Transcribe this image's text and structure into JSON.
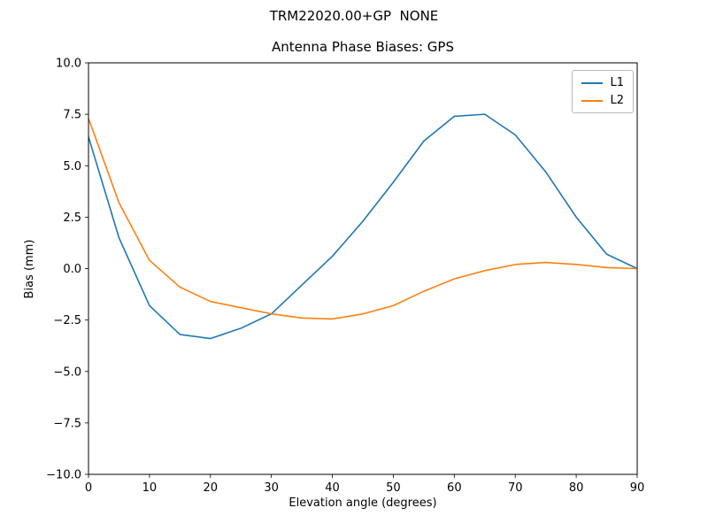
{
  "figure": {
    "suptitle": "TRM22020.00+GP  NONE"
  },
  "chart_data": {
    "type": "line",
    "title": "Antenna Phase Biases: GPS",
    "xlabel": "Elevation angle (degrees)",
    "ylabel": "Bias (mm)",
    "xlim": [
      0,
      90
    ],
    "ylim": [
      -10,
      10
    ],
    "grid": false,
    "legend_position": "upper right",
    "xticks": [
      0,
      10,
      20,
      30,
      40,
      50,
      60,
      70,
      80,
      90
    ],
    "xtick_labels": [
      "0",
      "10",
      "20",
      "30",
      "40",
      "50",
      "60",
      "70",
      "80",
      "90"
    ],
    "yticks": [
      -10,
      -7.5,
      -5,
      -2.5,
      0,
      2.5,
      5,
      7.5,
      10
    ],
    "ytick_labels": [
      "−10.0",
      "−7.5",
      "−5.0",
      "−2.5",
      "0.0",
      "2.5",
      "5.0",
      "7.5",
      "10.0"
    ],
    "x": [
      0,
      5,
      10,
      15,
      20,
      25,
      30,
      35,
      40,
      45,
      50,
      55,
      60,
      65,
      70,
      75,
      80,
      85,
      90
    ],
    "series": [
      {
        "name": "L1",
        "color": "#1f77b4",
        "values": [
          6.4,
          1.5,
          -1.8,
          -3.2,
          -3.4,
          -2.9,
          -2.2,
          -0.8,
          0.6,
          2.3,
          4.2,
          6.2,
          7.4,
          7.5,
          6.5,
          4.7,
          2.5,
          0.7,
          0.0
        ]
      },
      {
        "name": "L2",
        "color": "#ff7f0e",
        "values": [
          7.3,
          3.2,
          0.4,
          -0.9,
          -1.6,
          -1.9,
          -2.2,
          -2.4,
          -2.45,
          -2.2,
          -1.8,
          -1.1,
          -0.5,
          -0.1,
          0.2,
          0.3,
          0.2,
          0.05,
          0.0
        ]
      }
    ]
  }
}
